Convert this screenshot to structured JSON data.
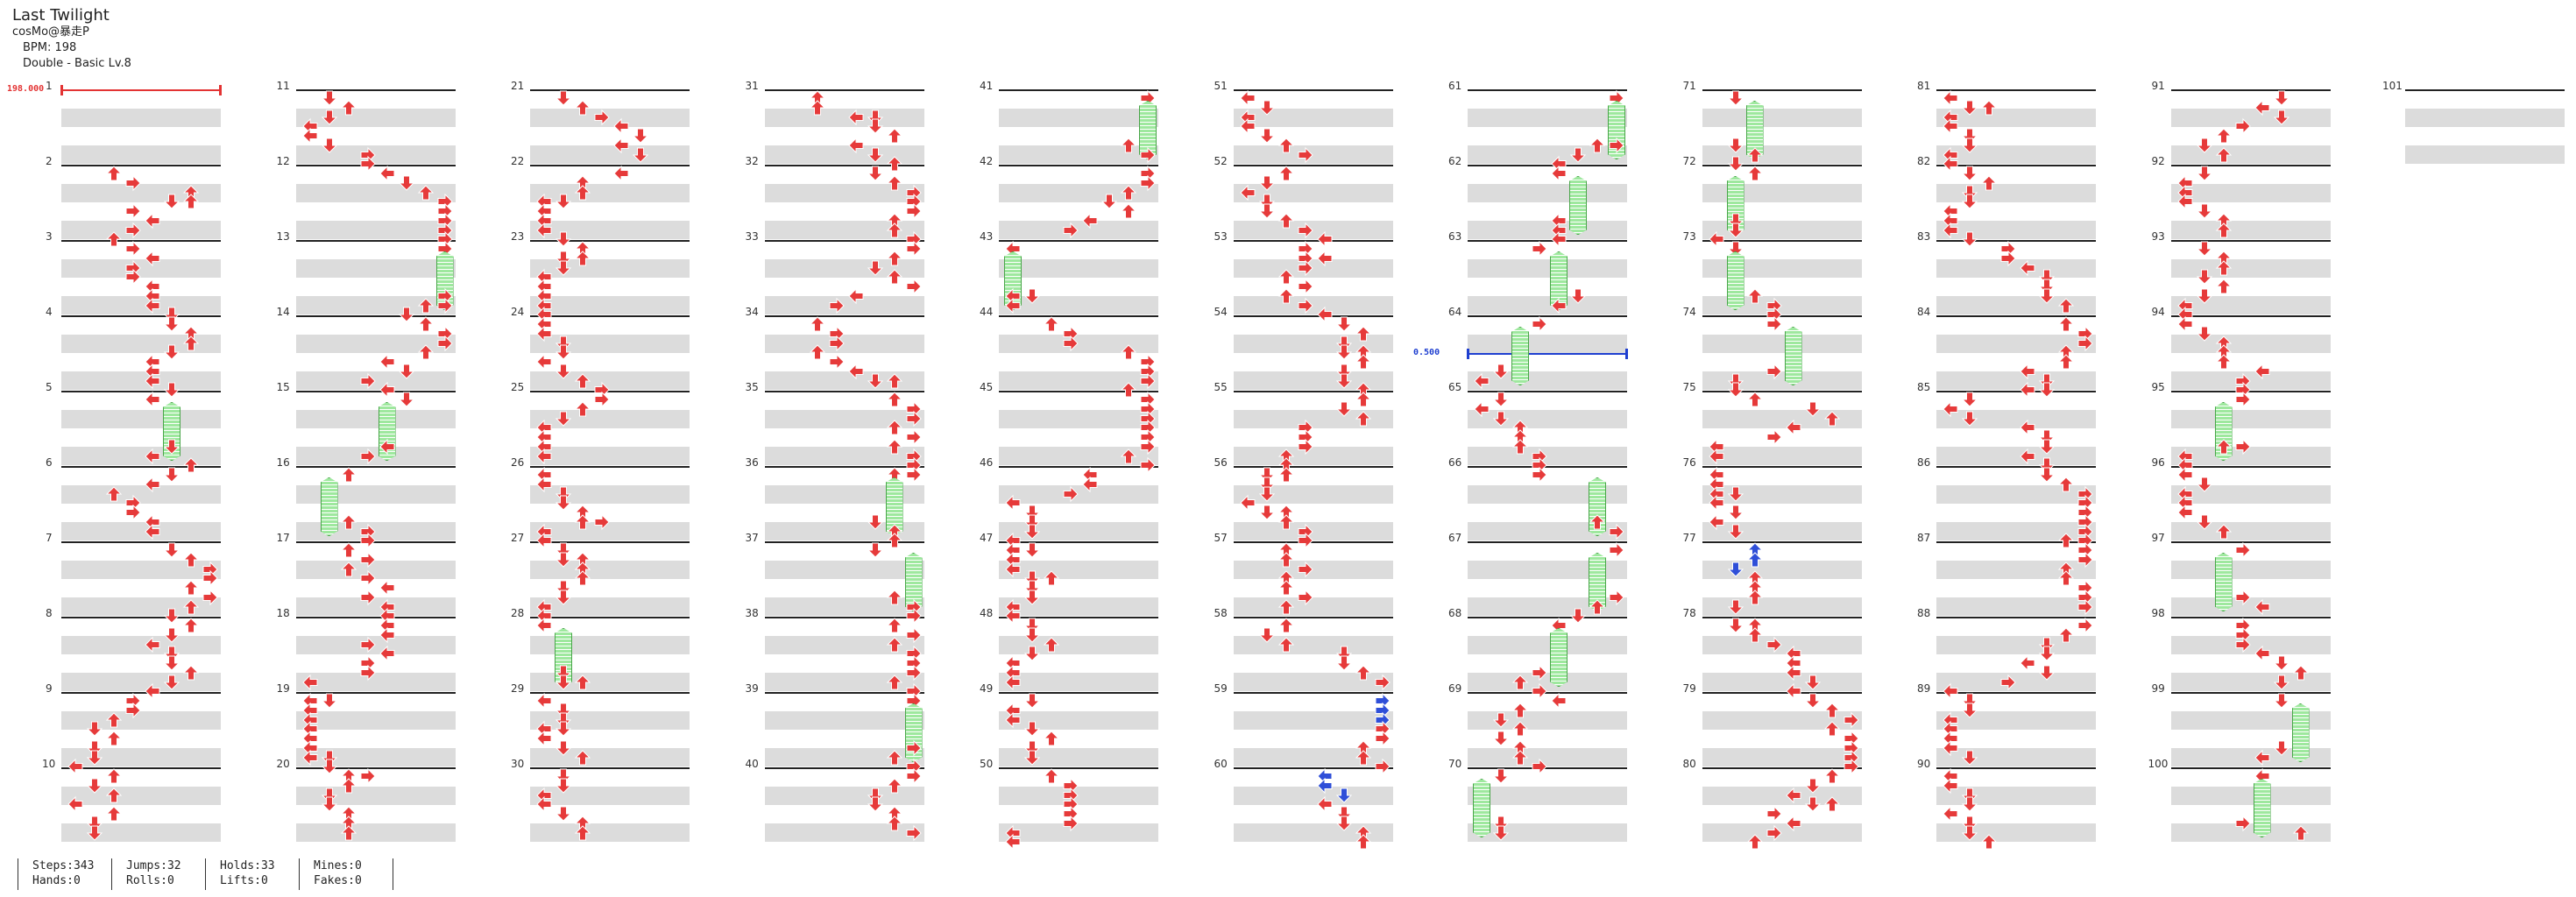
{
  "song": {
    "title": "Last Twilight",
    "artist": "cosMo@暴走P",
    "bpm_text": "BPM: 198",
    "difficulty_text": "Double - Basic Lv.8"
  },
  "measures": [
    1,
    2,
    3,
    4,
    5,
    6,
    7,
    8,
    9,
    10,
    11,
    12,
    13,
    14,
    15,
    16,
    17,
    18,
    19,
    20,
    21,
    22,
    23,
    24,
    25,
    26,
    27,
    28,
    29,
    30,
    31,
    32,
    33,
    34,
    35,
    36,
    37,
    38,
    39,
    40,
    41,
    42,
    43,
    44,
    45,
    46,
    47,
    48,
    49,
    50,
    51,
    52,
    53,
    54,
    55,
    56,
    57,
    58,
    59,
    60,
    61,
    62,
    63,
    64,
    65,
    66,
    67,
    68,
    69,
    70,
    71,
    72,
    73,
    74,
    75,
    76,
    77,
    78,
    79,
    80,
    81,
    82,
    83,
    84,
    85,
    86,
    87,
    88,
    89,
    90,
    91,
    92,
    93,
    94,
    95,
    96,
    97,
    98,
    99,
    100,
    101
  ],
  "bpm_changes": [
    {
      "measure_pos": 0.0,
      "label": "198.000",
      "color": "#e33333"
    },
    {
      "measure_pos": 63.5,
      "label": "0.500",
      "color": "#1f3fd0"
    }
  ],
  "colors": {
    "note": "#e63a3a",
    "special": "#2f4fd8",
    "hold": "#9ee89e",
    "hold_border": "#4aa54a",
    "stripe": "#dcdcdc"
  },
  "stats": {
    "steps": "Steps:343",
    "jumps": "Jumps:32",
    "holds": "Holds:33",
    "mines": "Mines:0",
    "hands": "Hands:0",
    "rolls": "Rolls:0",
    "lifts": "Lifts:0",
    "fakes": "Fakes:0"
  }
}
